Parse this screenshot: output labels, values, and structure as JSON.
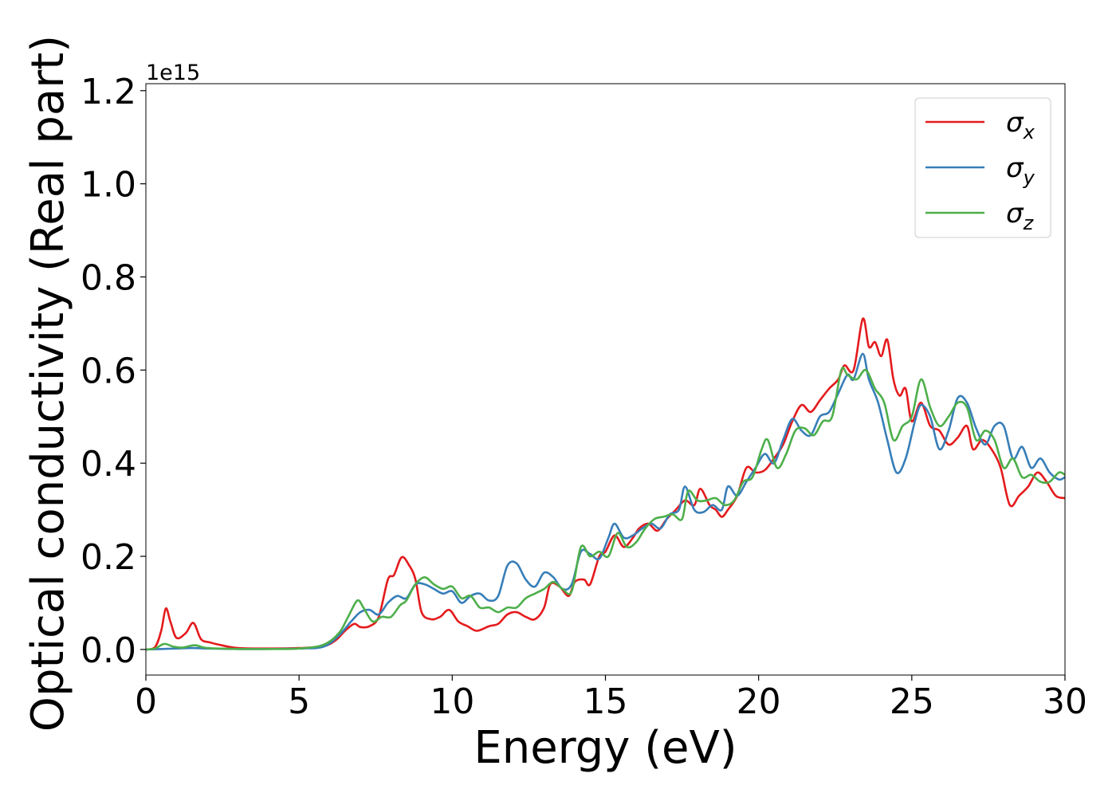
{
  "chart_data": {
    "type": "line",
    "title": "",
    "xlabel": "Energy (eV)",
    "ylabel": "Optical conductivity (Real part)",
    "y_offset_text": "1e15",
    "xlim": [
      0,
      30
    ],
    "ylim": [
      -0.055,
      1.215
    ],
    "x_ticks": [
      0,
      5,
      10,
      15,
      20,
      25,
      30
    ],
    "x_tick_labels": [
      "0",
      "5",
      "10",
      "15",
      "20",
      "25",
      "30"
    ],
    "y_ticks": [
      0.0,
      0.2,
      0.4,
      0.6,
      0.8,
      1.0,
      1.2
    ],
    "y_tick_labels": [
      "0.0",
      "0.2",
      "0.4",
      "0.6",
      "0.8",
      "1.0",
      "1.2"
    ],
    "grid": false,
    "legend_position": "top-right",
    "series": [
      {
        "name": "σx",
        "legend_symbol": "σ",
        "legend_subscript": "x",
        "color": "#e41a1c",
        "points": [
          [
            0,
            0
          ],
          [
            0.3,
            0.005
          ],
          [
            0.5,
            0.04
          ],
          [
            0.65,
            0.088
          ],
          [
            0.8,
            0.06
          ],
          [
            1.0,
            0.025
          ],
          [
            1.3,
            0.035
          ],
          [
            1.55,
            0.057
          ],
          [
            1.8,
            0.022
          ],
          [
            2.1,
            0.015
          ],
          [
            2.4,
            0.01
          ],
          [
            3.0,
            0.003
          ],
          [
            4.0,
            0.002
          ],
          [
            5.0,
            0.003
          ],
          [
            5.8,
            0.007
          ],
          [
            6.2,
            0.02
          ],
          [
            6.5,
            0.04
          ],
          [
            6.8,
            0.055
          ],
          [
            7.0,
            0.048
          ],
          [
            7.3,
            0.05
          ],
          [
            7.6,
            0.07
          ],
          [
            7.9,
            0.15
          ],
          [
            8.1,
            0.16
          ],
          [
            8.35,
            0.198
          ],
          [
            8.6,
            0.18
          ],
          [
            8.8,
            0.15
          ],
          [
            9.0,
            0.08
          ],
          [
            9.3,
            0.065
          ],
          [
            9.6,
            0.07
          ],
          [
            9.9,
            0.085
          ],
          [
            10.2,
            0.06
          ],
          [
            10.5,
            0.05
          ],
          [
            10.8,
            0.04
          ],
          [
            11.2,
            0.05
          ],
          [
            11.5,
            0.055
          ],
          [
            11.8,
            0.075
          ],
          [
            12.1,
            0.08
          ],
          [
            12.4,
            0.07
          ],
          [
            12.7,
            0.065
          ],
          [
            13.0,
            0.09
          ],
          [
            13.2,
            0.14
          ],
          [
            13.5,
            0.135
          ],
          [
            13.8,
            0.115
          ],
          [
            14.0,
            0.145
          ],
          [
            14.3,
            0.15
          ],
          [
            14.5,
            0.14
          ],
          [
            14.8,
            0.2
          ],
          [
            15.0,
            0.21
          ],
          [
            15.3,
            0.245
          ],
          [
            15.6,
            0.22
          ],
          [
            15.9,
            0.24
          ],
          [
            16.1,
            0.26
          ],
          [
            16.4,
            0.27
          ],
          [
            16.7,
            0.255
          ],
          [
            17.0,
            0.28
          ],
          [
            17.3,
            0.3
          ],
          [
            17.6,
            0.32
          ],
          [
            17.9,
            0.31
          ],
          [
            18.1,
            0.345
          ],
          [
            18.4,
            0.31
          ],
          [
            18.6,
            0.3
          ],
          [
            18.8,
            0.285
          ],
          [
            19.0,
            0.3
          ],
          [
            19.3,
            0.33
          ],
          [
            19.6,
            0.39
          ],
          [
            19.9,
            0.38
          ],
          [
            20.2,
            0.385
          ],
          [
            20.5,
            0.41
          ],
          [
            20.8,
            0.44
          ],
          [
            21.1,
            0.49
          ],
          [
            21.4,
            0.525
          ],
          [
            21.7,
            0.51
          ],
          [
            22.0,
            0.535
          ],
          [
            22.3,
            0.56
          ],
          [
            22.6,
            0.58
          ],
          [
            22.8,
            0.61
          ],
          [
            23.1,
            0.6
          ],
          [
            23.4,
            0.71
          ],
          [
            23.6,
            0.65
          ],
          [
            23.8,
            0.66
          ],
          [
            24.0,
            0.63
          ],
          [
            24.2,
            0.665
          ],
          [
            24.4,
            0.58
          ],
          [
            24.6,
            0.545
          ],
          [
            24.8,
            0.56
          ],
          [
            25.0,
            0.49
          ],
          [
            25.3,
            0.53
          ],
          [
            25.6,
            0.48
          ],
          [
            25.9,
            0.47
          ],
          [
            26.2,
            0.44
          ],
          [
            26.5,
            0.455
          ],
          [
            26.8,
            0.48
          ],
          [
            27.0,
            0.43
          ],
          [
            27.3,
            0.45
          ],
          [
            27.6,
            0.43
          ],
          [
            27.9,
            0.39
          ],
          [
            28.2,
            0.31
          ],
          [
            28.5,
            0.33
          ],
          [
            28.8,
            0.35
          ],
          [
            29.1,
            0.38
          ],
          [
            29.4,
            0.36
          ],
          [
            29.7,
            0.33
          ],
          [
            30.0,
            0.325
          ]
        ]
      },
      {
        "name": "σy",
        "legend_symbol": "σ",
        "legend_subscript": "y",
        "color": "#377eb8",
        "points": [
          [
            0,
            0
          ],
          [
            0.5,
            0.001
          ],
          [
            1.0,
            0.002
          ],
          [
            1.5,
            0.003
          ],
          [
            2.0,
            0.002
          ],
          [
            3.0,
            0.001
          ],
          [
            4.0,
            0.001
          ],
          [
            5.0,
            0.002
          ],
          [
            5.8,
            0.006
          ],
          [
            6.3,
            0.03
          ],
          [
            6.7,
            0.06
          ],
          [
            7.0,
            0.08
          ],
          [
            7.3,
            0.085
          ],
          [
            7.6,
            0.075
          ],
          [
            7.9,
            0.1
          ],
          [
            8.2,
            0.115
          ],
          [
            8.5,
            0.11
          ],
          [
            8.8,
            0.14
          ],
          [
            9.1,
            0.14
          ],
          [
            9.4,
            0.13
          ],
          [
            9.7,
            0.12
          ],
          [
            10.0,
            0.125
          ],
          [
            10.3,
            0.1
          ],
          [
            10.6,
            0.115
          ],
          [
            10.9,
            0.12
          ],
          [
            11.2,
            0.105
          ],
          [
            11.5,
            0.115
          ],
          [
            11.8,
            0.18
          ],
          [
            12.1,
            0.185
          ],
          [
            12.4,
            0.15
          ],
          [
            12.7,
            0.135
          ],
          [
            13.0,
            0.165
          ],
          [
            13.3,
            0.155
          ],
          [
            13.6,
            0.13
          ],
          [
            13.9,
            0.14
          ],
          [
            14.2,
            0.21
          ],
          [
            14.5,
            0.205
          ],
          [
            14.8,
            0.195
          ],
          [
            15.1,
            0.24
          ],
          [
            15.3,
            0.27
          ],
          [
            15.6,
            0.24
          ],
          [
            15.9,
            0.245
          ],
          [
            16.2,
            0.26
          ],
          [
            16.5,
            0.27
          ],
          [
            16.8,
            0.26
          ],
          [
            17.1,
            0.29
          ],
          [
            17.4,
            0.3
          ],
          [
            17.6,
            0.35
          ],
          [
            17.9,
            0.3
          ],
          [
            18.2,
            0.295
          ],
          [
            18.5,
            0.31
          ],
          [
            18.8,
            0.3
          ],
          [
            19.0,
            0.35
          ],
          [
            19.3,
            0.33
          ],
          [
            19.6,
            0.36
          ],
          [
            19.9,
            0.39
          ],
          [
            20.2,
            0.42
          ],
          [
            20.5,
            0.4
          ],
          [
            20.8,
            0.45
          ],
          [
            21.1,
            0.495
          ],
          [
            21.4,
            0.47
          ],
          [
            21.7,
            0.46
          ],
          [
            22.0,
            0.5
          ],
          [
            22.3,
            0.51
          ],
          [
            22.6,
            0.55
          ],
          [
            22.9,
            0.59
          ],
          [
            23.1,
            0.58
          ],
          [
            23.4,
            0.635
          ],
          [
            23.6,
            0.58
          ],
          [
            23.9,
            0.53
          ],
          [
            24.2,
            0.45
          ],
          [
            24.5,
            0.38
          ],
          [
            24.8,
            0.41
          ],
          [
            25.1,
            0.49
          ],
          [
            25.3,
            0.525
          ],
          [
            25.6,
            0.5
          ],
          [
            25.9,
            0.43
          ],
          [
            26.2,
            0.47
          ],
          [
            26.5,
            0.54
          ],
          [
            26.8,
            0.53
          ],
          [
            27.1,
            0.475
          ],
          [
            27.4,
            0.44
          ],
          [
            27.7,
            0.48
          ],
          [
            28.0,
            0.48
          ],
          [
            28.3,
            0.41
          ],
          [
            28.6,
            0.435
          ],
          [
            28.9,
            0.39
          ],
          [
            29.2,
            0.41
          ],
          [
            29.5,
            0.38
          ],
          [
            29.8,
            0.365
          ],
          [
            30.0,
            0.37
          ]
        ]
      },
      {
        "name": "σz",
        "legend_symbol": "σ",
        "legend_subscript": "z",
        "color": "#4daf4a",
        "points": [
          [
            0,
            0
          ],
          [
            0.3,
            0.002
          ],
          [
            0.6,
            0.012
          ],
          [
            0.9,
            0.006
          ],
          [
            1.2,
            0.004
          ],
          [
            1.6,
            0.009
          ],
          [
            2.0,
            0.003
          ],
          [
            3.0,
            0.001
          ],
          [
            4.0,
            0.001
          ],
          [
            5.0,
            0.002
          ],
          [
            5.8,
            0.01
          ],
          [
            6.3,
            0.035
          ],
          [
            6.6,
            0.07
          ],
          [
            6.9,
            0.105
          ],
          [
            7.1,
            0.09
          ],
          [
            7.4,
            0.06
          ],
          [
            7.7,
            0.07
          ],
          [
            8.0,
            0.07
          ],
          [
            8.3,
            0.095
          ],
          [
            8.5,
            0.105
          ],
          [
            8.8,
            0.14
          ],
          [
            9.1,
            0.155
          ],
          [
            9.4,
            0.14
          ],
          [
            9.7,
            0.13
          ],
          [
            10.0,
            0.135
          ],
          [
            10.3,
            0.11
          ],
          [
            10.6,
            0.115
          ],
          [
            10.9,
            0.09
          ],
          [
            11.2,
            0.09
          ],
          [
            11.5,
            0.08
          ],
          [
            11.8,
            0.09
          ],
          [
            12.1,
            0.09
          ],
          [
            12.4,
            0.11
          ],
          [
            12.7,
            0.12
          ],
          [
            13.0,
            0.13
          ],
          [
            13.3,
            0.145
          ],
          [
            13.6,
            0.13
          ],
          [
            13.9,
            0.125
          ],
          [
            14.2,
            0.22
          ],
          [
            14.5,
            0.2
          ],
          [
            14.8,
            0.21
          ],
          [
            15.1,
            0.2
          ],
          [
            15.4,
            0.25
          ],
          [
            15.7,
            0.22
          ],
          [
            16.0,
            0.23
          ],
          [
            16.3,
            0.26
          ],
          [
            16.6,
            0.28
          ],
          [
            16.9,
            0.285
          ],
          [
            17.2,
            0.29
          ],
          [
            17.5,
            0.28
          ],
          [
            17.7,
            0.34
          ],
          [
            18.0,
            0.32
          ],
          [
            18.3,
            0.32
          ],
          [
            18.6,
            0.325
          ],
          [
            18.9,
            0.31
          ],
          [
            19.2,
            0.32
          ],
          [
            19.5,
            0.36
          ],
          [
            19.8,
            0.37
          ],
          [
            20.1,
            0.43
          ],
          [
            20.3,
            0.45
          ],
          [
            20.6,
            0.39
          ],
          [
            20.9,
            0.42
          ],
          [
            21.2,
            0.47
          ],
          [
            21.5,
            0.475
          ],
          [
            21.8,
            0.46
          ],
          [
            22.1,
            0.49
          ],
          [
            22.4,
            0.5
          ],
          [
            22.7,
            0.6
          ],
          [
            22.9,
            0.59
          ],
          [
            23.2,
            0.58
          ],
          [
            23.5,
            0.6
          ],
          [
            23.8,
            0.56
          ],
          [
            24.1,
            0.53
          ],
          [
            24.4,
            0.45
          ],
          [
            24.7,
            0.48
          ],
          [
            25.0,
            0.5
          ],
          [
            25.3,
            0.58
          ],
          [
            25.6,
            0.52
          ],
          [
            25.9,
            0.48
          ],
          [
            26.2,
            0.5
          ],
          [
            26.5,
            0.53
          ],
          [
            26.8,
            0.52
          ],
          [
            27.1,
            0.45
          ],
          [
            27.4,
            0.47
          ],
          [
            27.7,
            0.45
          ],
          [
            28.0,
            0.39
          ],
          [
            28.3,
            0.41
          ],
          [
            28.6,
            0.37
          ],
          [
            28.9,
            0.375
          ],
          [
            29.2,
            0.36
          ],
          [
            29.5,
            0.36
          ],
          [
            29.8,
            0.38
          ],
          [
            30.0,
            0.375
          ]
        ]
      }
    ]
  }
}
